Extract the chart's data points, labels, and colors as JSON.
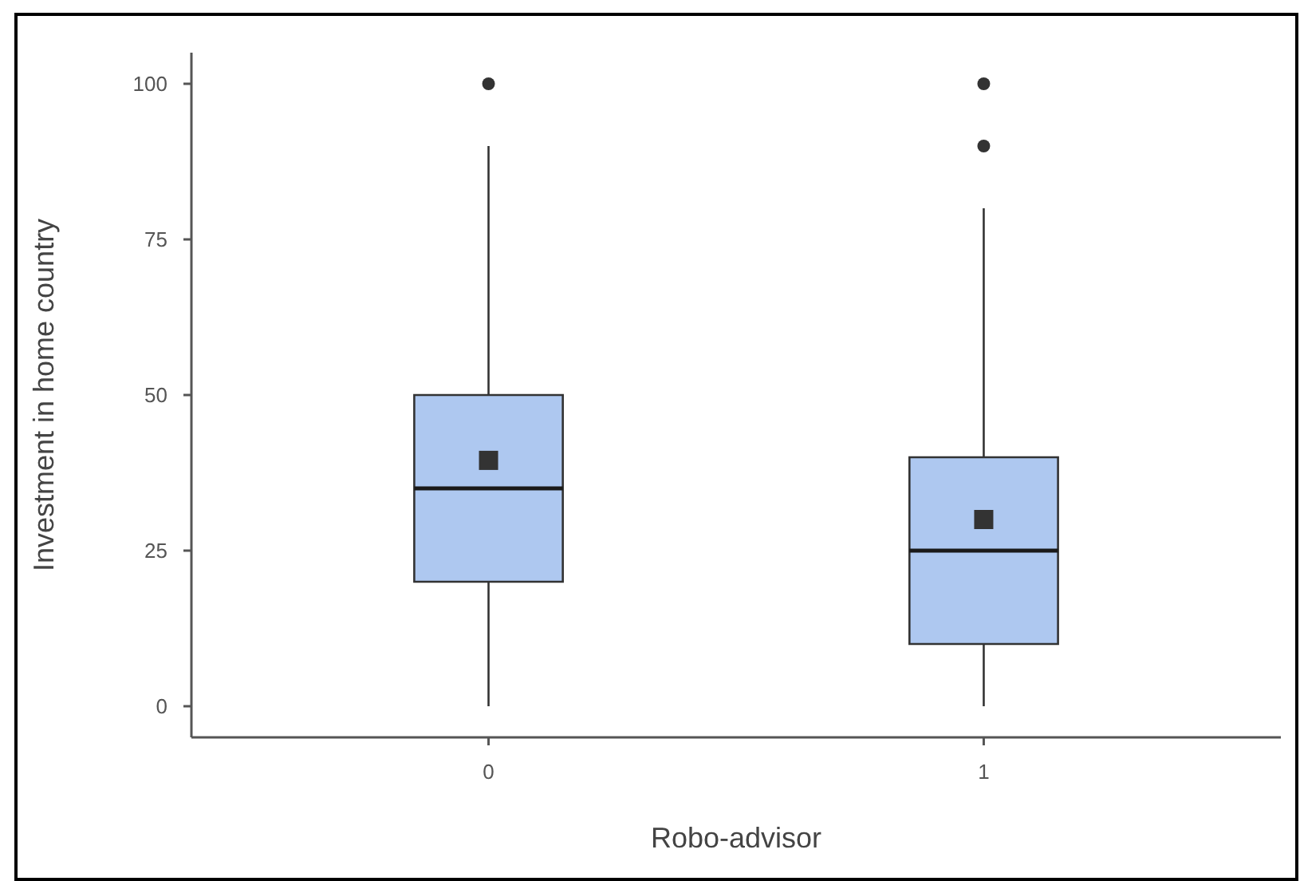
{
  "chart_data": {
    "type": "box",
    "xlabel": "Robo-advisor",
    "ylabel": "Investment in home country",
    "categories": [
      "0",
      "1"
    ],
    "color": "#aec8f0",
    "boxes": [
      {
        "low": 0,
        "q1": 20,
        "median": 35,
        "q3": 50,
        "high": 90,
        "mean": 39.5,
        "outliers": [
          100
        ]
      },
      {
        "low": 0,
        "q1": 10,
        "median": 25,
        "q3": 40,
        "high": 80,
        "mean": 30,
        "outliers": [
          90,
          100
        ]
      }
    ],
    "ylim": [
      -5,
      105
    ],
    "yticks": [
      0,
      25,
      50,
      75,
      100
    ]
  }
}
